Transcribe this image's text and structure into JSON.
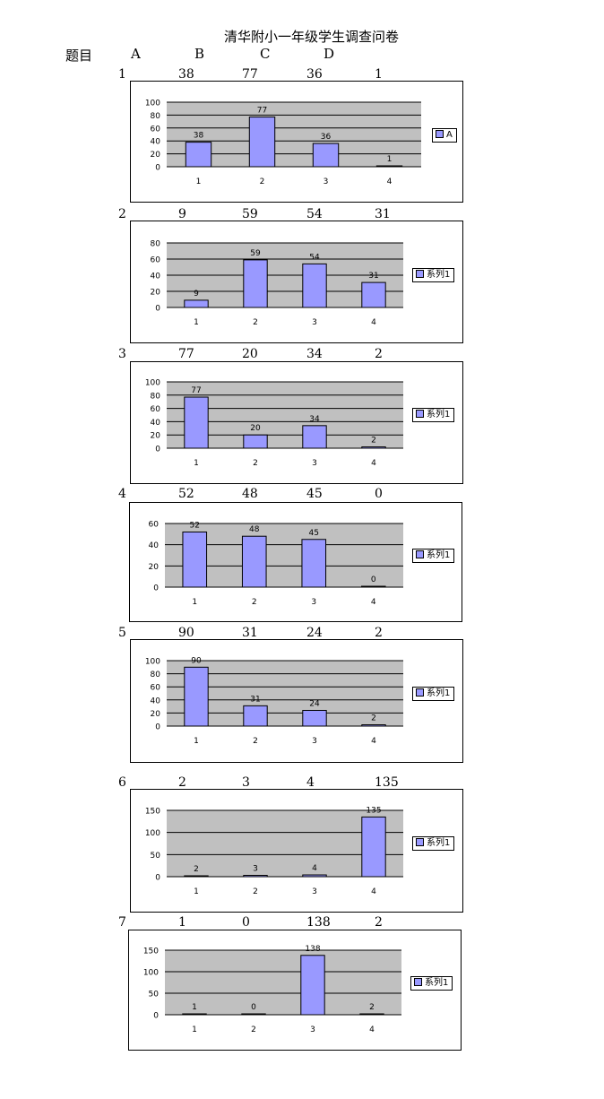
{
  "page": {
    "title": "清华附小一年级学生调查问卷",
    "header": {
      "topic": "题目",
      "a": "A",
      "b": "B",
      "c": "C",
      "d": "D"
    }
  },
  "colors": {
    "bar": "#9999ff",
    "plot_bg": "#c0c0c0"
  },
  "questions": [
    {
      "num": "1",
      "values": [
        "38",
        "77",
        "36",
        "1"
      ]
    },
    {
      "num": "2",
      "values": [
        "9",
        "59",
        "54",
        "31"
      ]
    },
    {
      "num": "3",
      "values": [
        "77",
        "20",
        "34",
        "2"
      ]
    },
    {
      "num": "4",
      "values": [
        "52",
        "48",
        "45",
        "0"
      ]
    },
    {
      "num": "5",
      "values": [
        "90",
        "31",
        "24",
        "2"
      ]
    },
    {
      "num": "6",
      "values": [
        "2",
        "3",
        "4",
        "135"
      ]
    },
    {
      "num": "7",
      "values": [
        "1",
        "0",
        "138",
        "2"
      ]
    }
  ],
  "chart_data": [
    {
      "type": "bar",
      "categories": [
        "1",
        "2",
        "3",
        "4"
      ],
      "series": [
        {
          "name": "A",
          "values": [
            38,
            77,
            36,
            1
          ]
        }
      ],
      "ylim": [
        0,
        100
      ],
      "yticks": [
        0,
        20,
        40,
        60,
        80,
        100
      ],
      "grid": true,
      "legend": "right",
      "data_labels": true
    },
    {
      "type": "bar",
      "categories": [
        "1",
        "2",
        "3",
        "4"
      ],
      "series": [
        {
          "name": "系列1",
          "values": [
            9,
            59,
            54,
            31
          ]
        }
      ],
      "ylim": [
        0,
        80
      ],
      "yticks": [
        0,
        20,
        40,
        60,
        80
      ],
      "grid": true,
      "legend": "right",
      "data_labels": true
    },
    {
      "type": "bar",
      "categories": [
        "1",
        "2",
        "3",
        "4"
      ],
      "series": [
        {
          "name": "系列1",
          "values": [
            77,
            20,
            34,
            2
          ]
        }
      ],
      "ylim": [
        0,
        100
      ],
      "yticks": [
        0,
        20,
        40,
        60,
        80,
        100
      ],
      "grid": true,
      "legend": "right",
      "data_labels": true
    },
    {
      "type": "bar",
      "categories": [
        "1",
        "2",
        "3",
        "4"
      ],
      "series": [
        {
          "name": "系列1",
          "values": [
            52,
            48,
            45,
            0
          ]
        }
      ],
      "ylim": [
        0,
        60
      ],
      "yticks": [
        0,
        20,
        40,
        60
      ],
      "grid": true,
      "legend": "right",
      "data_labels": true
    },
    {
      "type": "bar",
      "categories": [
        "1",
        "2",
        "3",
        "4"
      ],
      "series": [
        {
          "name": "系列1",
          "values": [
            90,
            31,
            24,
            2
          ]
        }
      ],
      "ylim": [
        0,
        100
      ],
      "yticks": [
        0,
        20,
        40,
        60,
        80,
        100
      ],
      "grid": true,
      "legend": "right",
      "data_labels": true
    },
    {
      "type": "bar",
      "categories": [
        "1",
        "2",
        "3",
        "4"
      ],
      "series": [
        {
          "name": "系列1",
          "values": [
            2,
            3,
            4,
            135
          ]
        }
      ],
      "ylim": [
        0,
        150
      ],
      "yticks": [
        0,
        50,
        100,
        150
      ],
      "grid": true,
      "legend": "right",
      "data_labels": true
    },
    {
      "type": "bar",
      "categories": [
        "1",
        "2",
        "3",
        "4"
      ],
      "series": [
        {
          "name": "系列1",
          "values": [
            1,
            0,
            138,
            2
          ]
        }
      ],
      "ylim": [
        0,
        150
      ],
      "yticks": [
        0,
        50,
        100,
        150
      ],
      "grid": true,
      "legend": "right",
      "data_labels": true
    }
  ]
}
